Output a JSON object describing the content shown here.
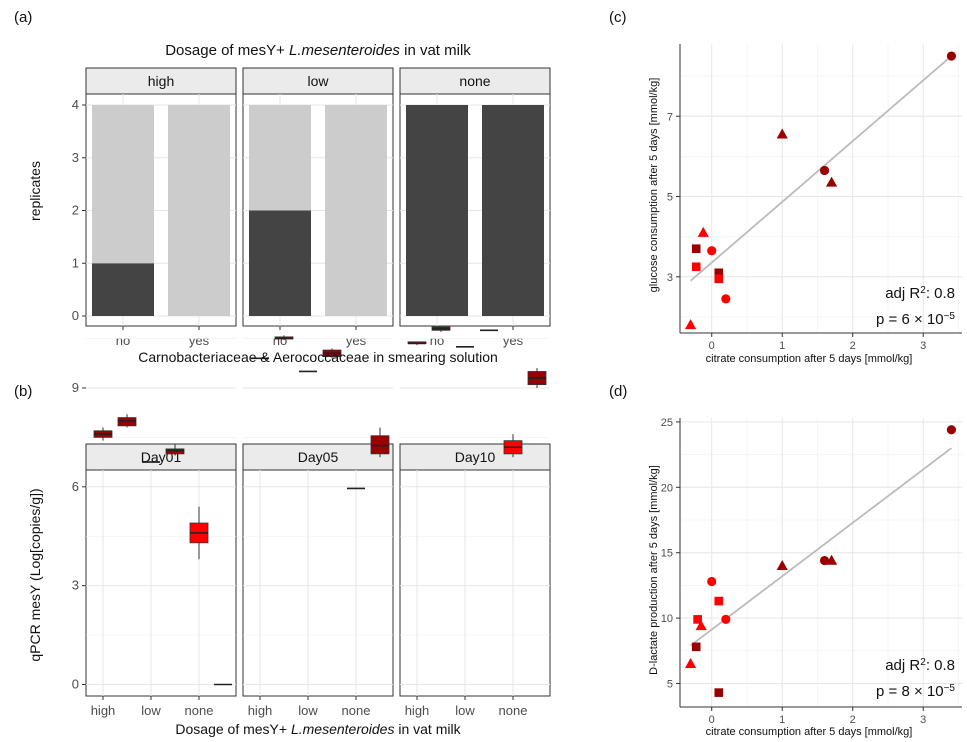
{
  "colors": {
    "dark_gray": "#444444",
    "light_gray": "#cccccc",
    "red": "#ff0000",
    "dark_red": "#990000",
    "fit_line": "#bbbbbb"
  },
  "panel_labels": {
    "a": "(a)",
    "b": "(b)",
    "c": "(c)",
    "d": "(d)"
  },
  "chart_data": [
    {
      "id": "a",
      "type": "bar",
      "stacked": true,
      "title": "Dosage of mesY+",
      "title_italic": "L.mesenteroides",
      "title_suffix": "in vat milk",
      "xlabel": "Carnobacteriaceae & Aerococcaceae in smearing solution",
      "ylabel": "replicates",
      "ylim": [
        0,
        4
      ],
      "yticks": [
        0,
        1,
        2,
        3,
        4
      ],
      "facets": [
        "high",
        "low",
        "none"
      ],
      "categories": [
        "no",
        "yes"
      ],
      "series": [
        {
          "color": "#444444",
          "values": [
            [
              1,
              0
            ],
            [
              2,
              0
            ],
            [
              4,
              4
            ]
          ]
        },
        {
          "color": "#cccccc",
          "values": [
            [
              3,
              4
            ],
            [
              2,
              4
            ],
            [
              0,
              0
            ]
          ]
        }
      ]
    },
    {
      "id": "b",
      "type": "boxplot",
      "xlabel": "Dosage of mesY+",
      "xlabel_italic": "L.mesenteroides",
      "xlabel_suffix": "in vat milk",
      "ylabel": "qPCR mesY (Log[copies/g])",
      "ylim": [
        0,
        11
      ],
      "yticks": [
        0,
        3,
        6,
        9
      ],
      "facets": [
        "Day01",
        "Day05",
        "Day10"
      ],
      "categories": [
        "high",
        "low",
        "none"
      ],
      "boxes": [
        {
          "facet": 0,
          "pos": 1,
          "color": "#990000",
          "min": 7.4,
          "q1": 7.5,
          "med": 7.6,
          "q3": 7.7,
          "max": 7.8
        },
        {
          "facet": 0,
          "pos": 1.5,
          "color": "#990000",
          "min": 7.8,
          "q1": 7.85,
          "med": 8.0,
          "q3": 8.1,
          "max": 8.2
        },
        {
          "facet": 0,
          "pos": 2,
          "color": "#990000",
          "min": 6.75,
          "q1": 6.75,
          "med": 6.75,
          "q3": 6.75,
          "max": 6.75
        },
        {
          "facet": 0,
          "pos": 2.5,
          "color": "#990000",
          "min": 6.95,
          "q1": 7.0,
          "med": 7.1,
          "q3": 7.15,
          "max": 7.3
        },
        {
          "facet": 0,
          "pos": 3,
          "color": "#ff0000",
          "min": 3.8,
          "q1": 4.3,
          "med": 4.6,
          "q3": 4.9,
          "max": 5.4
        },
        {
          "facet": 0,
          "pos": 3.5,
          "color": "#ff0000",
          "min": 0.0,
          "q1": 0.0,
          "med": 0.0,
          "q3": 0.0,
          "max": 0.0
        },
        {
          "facet": 1,
          "pos": 1,
          "color": "#990000",
          "min": 9.9,
          "q1": 9.9,
          "med": 9.9,
          "q3": 9.9,
          "max": 9.9
        },
        {
          "facet": 1,
          "pos": 1.5,
          "color": "#990000",
          "min": 10.45,
          "q1": 10.5,
          "med": 10.5,
          "q3": 10.55,
          "max": 10.6
        },
        {
          "facet": 1,
          "pos": 2,
          "color": "#990000",
          "min": 9.5,
          "q1": 9.5,
          "med": 9.5,
          "q3": 9.5,
          "max": 9.5
        },
        {
          "facet": 1,
          "pos": 2.5,
          "color": "#990000",
          "min": 9.9,
          "q1": 9.95,
          "med": 10.05,
          "q3": 10.15,
          "max": 10.2
        },
        {
          "facet": 1,
          "pos": 3,
          "color": "#ff0000",
          "min": 5.95,
          "q1": 5.95,
          "med": 5.95,
          "q3": 5.95,
          "max": 5.95
        },
        {
          "facet": 1,
          "pos": 3.5,
          "color": "#990000",
          "min": 6.9,
          "q1": 7.0,
          "med": 7.25,
          "q3": 7.55,
          "max": 7.8
        },
        {
          "facet": 2,
          "pos": 1,
          "color": "#990000",
          "min": 10.3,
          "q1": 10.35,
          "med": 10.35,
          "q3": 10.4,
          "max": 10.4
        },
        {
          "facet": 2,
          "pos": 1.5,
          "color": "#990000",
          "min": 10.7,
          "q1": 10.75,
          "med": 10.8,
          "q3": 10.85,
          "max": 10.85
        },
        {
          "facet": 2,
          "pos": 2,
          "color": "#990000",
          "min": 10.25,
          "q1": 10.25,
          "med": 10.25,
          "q3": 10.25,
          "max": 10.25
        },
        {
          "facet": 2,
          "pos": 2.5,
          "color": "#990000",
          "min": 10.75,
          "q1": 10.75,
          "med": 10.75,
          "q3": 10.75,
          "max": 10.75
        },
        {
          "facet": 2,
          "pos": 3,
          "color": "#ff0000",
          "min": 6.9,
          "q1": 7.0,
          "med": 7.2,
          "q3": 7.4,
          "max": 7.6
        },
        {
          "facet": 2,
          "pos": 3.5,
          "color": "#990000",
          "min": 9.0,
          "q1": 9.1,
          "med": 9.3,
          "q3": 9.5,
          "max": 9.6
        }
      ]
    },
    {
      "id": "c",
      "type": "scatter",
      "xlabel": "citrate consumption after 5 days [mmol/kg]",
      "ylabel": "glucose consumption after 5 days [mmol/kg]",
      "xlim": [
        -0.45,
        3.55
      ],
      "ylim": [
        1.6,
        8.8
      ],
      "xticks": [
        0,
        1,
        2,
        3
      ],
      "yticks": [
        3,
        5,
        7
      ],
      "fit": [
        [
          -0.3,
          2.9
        ],
        [
          3.4,
          8.5
        ]
      ],
      "annotation_r2_prefix": "adj R",
      "annotation_r2_sup": "2",
      "annotation_r2_value": ":  0.8",
      "annotation_p_prefix": "p = 6 × 10",
      "annotation_p_sup": "−5",
      "points": [
        {
          "x": 3.4,
          "y": 8.5,
          "shape": "circle",
          "color": "#990000"
        },
        {
          "x": 1.0,
          "y": 6.55,
          "shape": "triangle",
          "color": "#990000"
        },
        {
          "x": 1.6,
          "y": 5.65,
          "shape": "circle",
          "color": "#990000"
        },
        {
          "x": 1.7,
          "y": 5.35,
          "shape": "triangle",
          "color": "#990000"
        },
        {
          "x": -0.12,
          "y": 4.1,
          "shape": "triangle",
          "color": "#ff0000"
        },
        {
          "x": -0.22,
          "y": 3.7,
          "shape": "square",
          "color": "#990000"
        },
        {
          "x": 0.0,
          "y": 3.65,
          "shape": "circle",
          "color": "#ff0000"
        },
        {
          "x": -0.22,
          "y": 3.25,
          "shape": "square",
          "color": "#ff0000"
        },
        {
          "x": 0.1,
          "y": 3.1,
          "shape": "square",
          "color": "#990000"
        },
        {
          "x": 0.1,
          "y": 2.95,
          "shape": "square",
          "color": "#ff0000"
        },
        {
          "x": 0.2,
          "y": 2.45,
          "shape": "circle",
          "color": "#ff0000"
        },
        {
          "x": -0.3,
          "y": 1.8,
          "shape": "triangle",
          "color": "#ff0000"
        }
      ]
    },
    {
      "id": "d",
      "type": "scatter",
      "xlabel": "citrate consumption after 5 days [mmol/kg]",
      "ylabel": "D-lactate production after 5 days [mmol/kg]",
      "xlim": [
        -0.45,
        3.55
      ],
      "ylim": [
        3.2,
        25.3
      ],
      "xticks": [
        0,
        1,
        2,
        3
      ],
      "yticks": [
        5,
        10,
        15,
        20,
        25
      ],
      "fit": [
        [
          -0.3,
          7.9
        ],
        [
          3.4,
          23.0
        ]
      ],
      "annotation_r2_prefix": "adj R",
      "annotation_r2_sup": "2",
      "annotation_r2_value": ":  0.8",
      "annotation_p_prefix": "p = 8 × 10",
      "annotation_p_sup": "−5",
      "points": [
        {
          "x": 3.4,
          "y": 24.4,
          "shape": "circle",
          "color": "#990000"
        },
        {
          "x": 1.6,
          "y": 14.4,
          "shape": "circle",
          "color": "#990000"
        },
        {
          "x": 1.7,
          "y": 14.4,
          "shape": "triangle",
          "color": "#990000"
        },
        {
          "x": 1.0,
          "y": 14.0,
          "shape": "triangle",
          "color": "#990000"
        },
        {
          "x": 0.0,
          "y": 12.8,
          "shape": "circle",
          "color": "#ff0000"
        },
        {
          "x": 0.1,
          "y": 11.3,
          "shape": "square",
          "color": "#ff0000"
        },
        {
          "x": -0.2,
          "y": 9.9,
          "shape": "square",
          "color": "#ff0000"
        },
        {
          "x": 0.2,
          "y": 9.9,
          "shape": "circle",
          "color": "#ff0000"
        },
        {
          "x": -0.15,
          "y": 9.4,
          "shape": "triangle",
          "color": "#ff0000"
        },
        {
          "x": -0.22,
          "y": 7.8,
          "shape": "square",
          "color": "#990000"
        },
        {
          "x": -0.3,
          "y": 6.5,
          "shape": "triangle",
          "color": "#ff0000"
        },
        {
          "x": 0.1,
          "y": 4.3,
          "shape": "square",
          "color": "#990000"
        }
      ]
    }
  ]
}
